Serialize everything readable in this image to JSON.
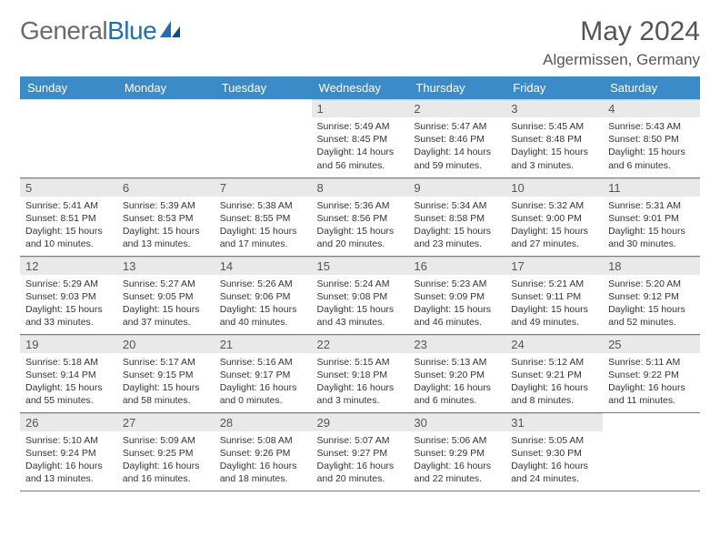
{
  "brand": {
    "text1": "General",
    "text2": "Blue"
  },
  "title": "May 2024",
  "location": "Algermissen, Germany",
  "colors": {
    "header_bg": "#3b8bc9",
    "header_fg": "#ffffff",
    "daynum_bg": "#e9e9e9",
    "rule": "#3b8bc9",
    "page_bg": "#ffffff",
    "body_text": "#333333",
    "title_text": "#555555",
    "logo_gray": "#6b6b6b",
    "logo_blue": "#1f6fb2"
  },
  "fonts": {
    "title_size_pt": 22,
    "header_size_pt": 10,
    "body_size_pt": 8
  },
  "day_headers": [
    "Sunday",
    "Monday",
    "Tuesday",
    "Wednesday",
    "Thursday",
    "Friday",
    "Saturday"
  ],
  "weeks": [
    [
      {
        "num": "",
        "lines": [
          "",
          "",
          "",
          ""
        ]
      },
      {
        "num": "",
        "lines": [
          "",
          "",
          "",
          ""
        ]
      },
      {
        "num": "",
        "lines": [
          "",
          "",
          "",
          ""
        ]
      },
      {
        "num": "1",
        "lines": [
          "Sunrise: 5:49 AM",
          "Sunset: 8:45 PM",
          "Daylight: 14 hours",
          "and 56 minutes."
        ]
      },
      {
        "num": "2",
        "lines": [
          "Sunrise: 5:47 AM",
          "Sunset: 8:46 PM",
          "Daylight: 14 hours",
          "and 59 minutes."
        ]
      },
      {
        "num": "3",
        "lines": [
          "Sunrise: 5:45 AM",
          "Sunset: 8:48 PM",
          "Daylight: 15 hours",
          "and 3 minutes."
        ]
      },
      {
        "num": "4",
        "lines": [
          "Sunrise: 5:43 AM",
          "Sunset: 8:50 PM",
          "Daylight: 15 hours",
          "and 6 minutes."
        ]
      }
    ],
    [
      {
        "num": "5",
        "lines": [
          "Sunrise: 5:41 AM",
          "Sunset: 8:51 PM",
          "Daylight: 15 hours",
          "and 10 minutes."
        ]
      },
      {
        "num": "6",
        "lines": [
          "Sunrise: 5:39 AM",
          "Sunset: 8:53 PM",
          "Daylight: 15 hours",
          "and 13 minutes."
        ]
      },
      {
        "num": "7",
        "lines": [
          "Sunrise: 5:38 AM",
          "Sunset: 8:55 PM",
          "Daylight: 15 hours",
          "and 17 minutes."
        ]
      },
      {
        "num": "8",
        "lines": [
          "Sunrise: 5:36 AM",
          "Sunset: 8:56 PM",
          "Daylight: 15 hours",
          "and 20 minutes."
        ]
      },
      {
        "num": "9",
        "lines": [
          "Sunrise: 5:34 AM",
          "Sunset: 8:58 PM",
          "Daylight: 15 hours",
          "and 23 minutes."
        ]
      },
      {
        "num": "10",
        "lines": [
          "Sunrise: 5:32 AM",
          "Sunset: 9:00 PM",
          "Daylight: 15 hours",
          "and 27 minutes."
        ]
      },
      {
        "num": "11",
        "lines": [
          "Sunrise: 5:31 AM",
          "Sunset: 9:01 PM",
          "Daylight: 15 hours",
          "and 30 minutes."
        ]
      }
    ],
    [
      {
        "num": "12",
        "lines": [
          "Sunrise: 5:29 AM",
          "Sunset: 9:03 PM",
          "Daylight: 15 hours",
          "and 33 minutes."
        ]
      },
      {
        "num": "13",
        "lines": [
          "Sunrise: 5:27 AM",
          "Sunset: 9:05 PM",
          "Daylight: 15 hours",
          "and 37 minutes."
        ]
      },
      {
        "num": "14",
        "lines": [
          "Sunrise: 5:26 AM",
          "Sunset: 9:06 PM",
          "Daylight: 15 hours",
          "and 40 minutes."
        ]
      },
      {
        "num": "15",
        "lines": [
          "Sunrise: 5:24 AM",
          "Sunset: 9:08 PM",
          "Daylight: 15 hours",
          "and 43 minutes."
        ]
      },
      {
        "num": "16",
        "lines": [
          "Sunrise: 5:23 AM",
          "Sunset: 9:09 PM",
          "Daylight: 15 hours",
          "and 46 minutes."
        ]
      },
      {
        "num": "17",
        "lines": [
          "Sunrise: 5:21 AM",
          "Sunset: 9:11 PM",
          "Daylight: 15 hours",
          "and 49 minutes."
        ]
      },
      {
        "num": "18",
        "lines": [
          "Sunrise: 5:20 AM",
          "Sunset: 9:12 PM",
          "Daylight: 15 hours",
          "and 52 minutes."
        ]
      }
    ],
    [
      {
        "num": "19",
        "lines": [
          "Sunrise: 5:18 AM",
          "Sunset: 9:14 PM",
          "Daylight: 15 hours",
          "and 55 minutes."
        ]
      },
      {
        "num": "20",
        "lines": [
          "Sunrise: 5:17 AM",
          "Sunset: 9:15 PM",
          "Daylight: 15 hours",
          "and 58 minutes."
        ]
      },
      {
        "num": "21",
        "lines": [
          "Sunrise: 5:16 AM",
          "Sunset: 9:17 PM",
          "Daylight: 16 hours",
          "and 0 minutes."
        ]
      },
      {
        "num": "22",
        "lines": [
          "Sunrise: 5:15 AM",
          "Sunset: 9:18 PM",
          "Daylight: 16 hours",
          "and 3 minutes."
        ]
      },
      {
        "num": "23",
        "lines": [
          "Sunrise: 5:13 AM",
          "Sunset: 9:20 PM",
          "Daylight: 16 hours",
          "and 6 minutes."
        ]
      },
      {
        "num": "24",
        "lines": [
          "Sunrise: 5:12 AM",
          "Sunset: 9:21 PM",
          "Daylight: 16 hours",
          "and 8 minutes."
        ]
      },
      {
        "num": "25",
        "lines": [
          "Sunrise: 5:11 AM",
          "Sunset: 9:22 PM",
          "Daylight: 16 hours",
          "and 11 minutes."
        ]
      }
    ],
    [
      {
        "num": "26",
        "lines": [
          "Sunrise: 5:10 AM",
          "Sunset: 9:24 PM",
          "Daylight: 16 hours",
          "and 13 minutes."
        ]
      },
      {
        "num": "27",
        "lines": [
          "Sunrise: 5:09 AM",
          "Sunset: 9:25 PM",
          "Daylight: 16 hours",
          "and 16 minutes."
        ]
      },
      {
        "num": "28",
        "lines": [
          "Sunrise: 5:08 AM",
          "Sunset: 9:26 PM",
          "Daylight: 16 hours",
          "and 18 minutes."
        ]
      },
      {
        "num": "29",
        "lines": [
          "Sunrise: 5:07 AM",
          "Sunset: 9:27 PM",
          "Daylight: 16 hours",
          "and 20 minutes."
        ]
      },
      {
        "num": "30",
        "lines": [
          "Sunrise: 5:06 AM",
          "Sunset: 9:29 PM",
          "Daylight: 16 hours",
          "and 22 minutes."
        ]
      },
      {
        "num": "31",
        "lines": [
          "Sunrise: 5:05 AM",
          "Sunset: 9:30 PM",
          "Daylight: 16 hours",
          "and 24 minutes."
        ]
      },
      {
        "num": "",
        "lines": [
          "",
          "",
          "",
          ""
        ]
      }
    ]
  ]
}
